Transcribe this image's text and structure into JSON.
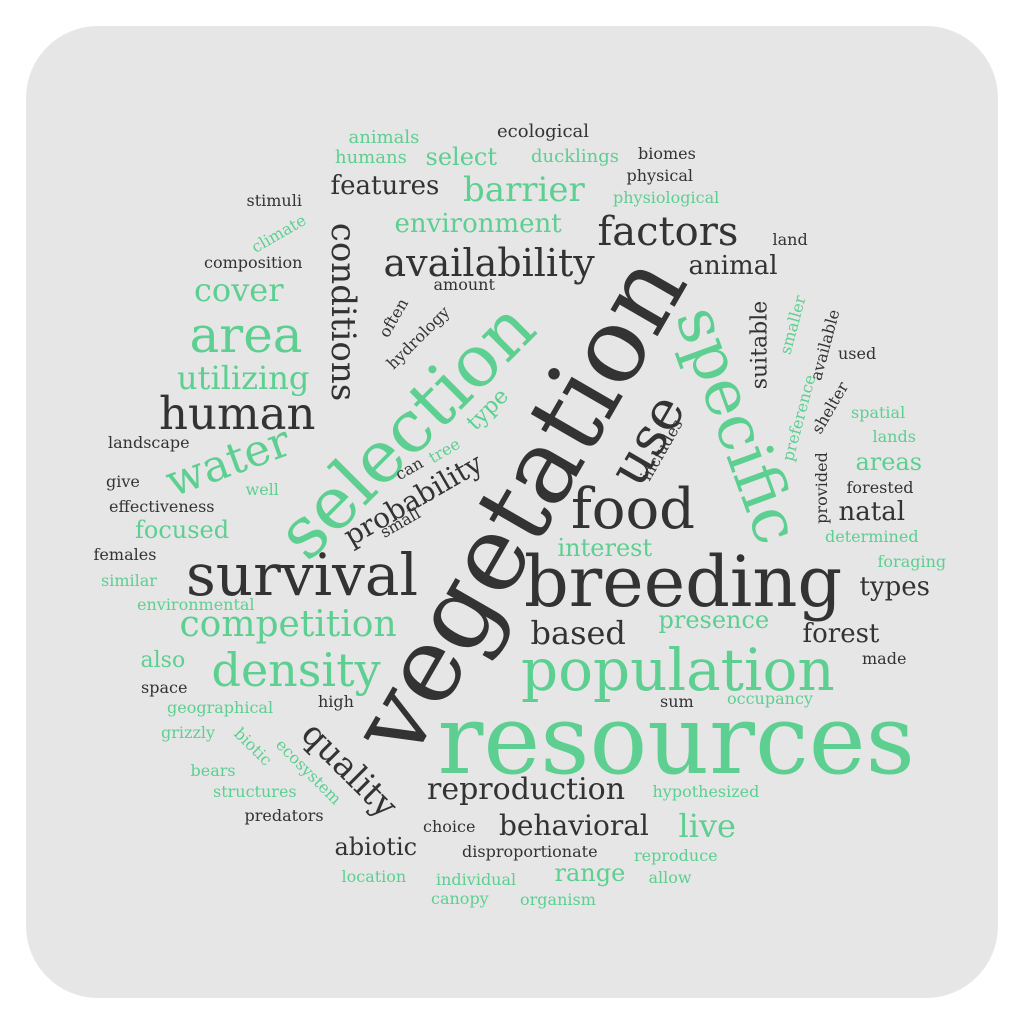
{
  "colors": {
    "dark": "#333333",
    "green": "#5ccf91",
    "card": "#e6e6e6"
  },
  "words": [
    {
      "text": "resources",
      "color": "green"
    },
    {
      "text": "vegetation",
      "color": "dark"
    },
    {
      "text": "breeding",
      "color": "dark"
    },
    {
      "text": "selection",
      "color": "green"
    },
    {
      "text": "population",
      "color": "green"
    },
    {
      "text": "specific",
      "color": "green"
    },
    {
      "text": "survival",
      "color": "dark"
    },
    {
      "text": "food",
      "color": "dark"
    },
    {
      "text": "use",
      "color": "dark"
    },
    {
      "text": "area",
      "color": "green"
    },
    {
      "text": "human",
      "color": "dark"
    },
    {
      "text": "density",
      "color": "green"
    },
    {
      "text": "water",
      "color": "green"
    },
    {
      "text": "availability",
      "color": "dark"
    },
    {
      "text": "conditions",
      "color": "dark"
    },
    {
      "text": "competition",
      "color": "green"
    },
    {
      "text": "quality",
      "color": "dark"
    },
    {
      "text": "factors",
      "color": "dark"
    },
    {
      "text": "barrier",
      "color": "green"
    },
    {
      "text": "based",
      "color": "dark"
    },
    {
      "text": "utilizing",
      "color": "green"
    },
    {
      "text": "cover",
      "color": "green"
    },
    {
      "text": "reproduction",
      "color": "dark"
    },
    {
      "text": "behavioral",
      "color": "dark"
    },
    {
      "text": "live",
      "color": "green"
    },
    {
      "text": "probability",
      "color": "dark"
    },
    {
      "text": "environment",
      "color": "green"
    },
    {
      "text": "features",
      "color": "dark"
    },
    {
      "text": "animal",
      "color": "dark"
    },
    {
      "text": "natal",
      "color": "dark"
    },
    {
      "text": "types",
      "color": "dark"
    },
    {
      "text": "forest",
      "color": "dark"
    },
    {
      "text": "presence",
      "color": "green"
    },
    {
      "text": "areas",
      "color": "green"
    },
    {
      "text": "focused",
      "color": "green"
    },
    {
      "text": "interest",
      "color": "green"
    },
    {
      "text": "abiotic",
      "color": "dark"
    },
    {
      "text": "range",
      "color": "green"
    },
    {
      "text": "also",
      "color": "green"
    },
    {
      "text": "suitable",
      "color": "dark"
    },
    {
      "text": "type",
      "color": "green"
    },
    {
      "text": "select",
      "color": "green"
    },
    {
      "text": "ecological",
      "color": "dark"
    },
    {
      "text": "animals",
      "color": "green"
    },
    {
      "text": "humans",
      "color": "green"
    },
    {
      "text": "ducklings",
      "color": "green"
    },
    {
      "text": "biomes",
      "color": "dark"
    },
    {
      "text": "physical",
      "color": "dark"
    },
    {
      "text": "physiological",
      "color": "green"
    },
    {
      "text": "stimuli",
      "color": "dark"
    },
    {
      "text": "climate",
      "color": "green"
    },
    {
      "text": "land",
      "color": "dark"
    },
    {
      "text": "composition",
      "color": "dark"
    },
    {
      "text": "amount",
      "color": "dark"
    },
    {
      "text": "often",
      "color": "dark"
    },
    {
      "text": "hydrology",
      "color": "dark"
    },
    {
      "text": "smaller",
      "color": "green"
    },
    {
      "text": "available",
      "color": "dark"
    },
    {
      "text": "used",
      "color": "dark"
    },
    {
      "text": "preference",
      "color": "green"
    },
    {
      "text": "shelter",
      "color": "dark"
    },
    {
      "text": "spatial",
      "color": "green"
    },
    {
      "text": "lands",
      "color": "green"
    },
    {
      "text": "provided",
      "color": "dark"
    },
    {
      "text": "forested",
      "color": "dark"
    },
    {
      "text": "determined",
      "color": "green"
    },
    {
      "text": "foraging",
      "color": "green"
    },
    {
      "text": "made",
      "color": "dark"
    },
    {
      "text": "occupancy",
      "color": "green"
    },
    {
      "text": "hypothesized",
      "color": "green"
    },
    {
      "text": "reproduce",
      "color": "green"
    },
    {
      "text": "allow",
      "color": "green"
    },
    {
      "text": "organism",
      "color": "green"
    },
    {
      "text": "canopy",
      "color": "green"
    },
    {
      "text": "individual",
      "color": "green"
    },
    {
      "text": "location",
      "color": "green"
    },
    {
      "text": "disproportionate",
      "color": "dark"
    },
    {
      "text": "choice",
      "color": "dark"
    },
    {
      "text": "predators",
      "color": "dark"
    },
    {
      "text": "structures",
      "color": "green"
    },
    {
      "text": "bears",
      "color": "green"
    },
    {
      "text": "grizzly",
      "color": "green"
    },
    {
      "text": "geographical",
      "color": "green"
    },
    {
      "text": "space",
      "color": "dark"
    },
    {
      "text": "environmental",
      "color": "green"
    },
    {
      "text": "similar",
      "color": "green"
    },
    {
      "text": "females",
      "color": "dark"
    },
    {
      "text": "effectiveness",
      "color": "dark"
    },
    {
      "text": "give",
      "color": "dark"
    },
    {
      "text": "landscape",
      "color": "dark"
    },
    {
      "text": "well",
      "color": "green"
    },
    {
      "text": "can",
      "color": "dark"
    },
    {
      "text": "small",
      "color": "dark"
    },
    {
      "text": "tree",
      "color": "green"
    },
    {
      "text": "includes",
      "color": "dark"
    },
    {
      "text": "high",
      "color": "dark"
    },
    {
      "text": "sum",
      "color": "dark"
    },
    {
      "text": "ecosystem",
      "color": "green"
    },
    {
      "text": "biotic",
      "color": "green"
    }
  ]
}
